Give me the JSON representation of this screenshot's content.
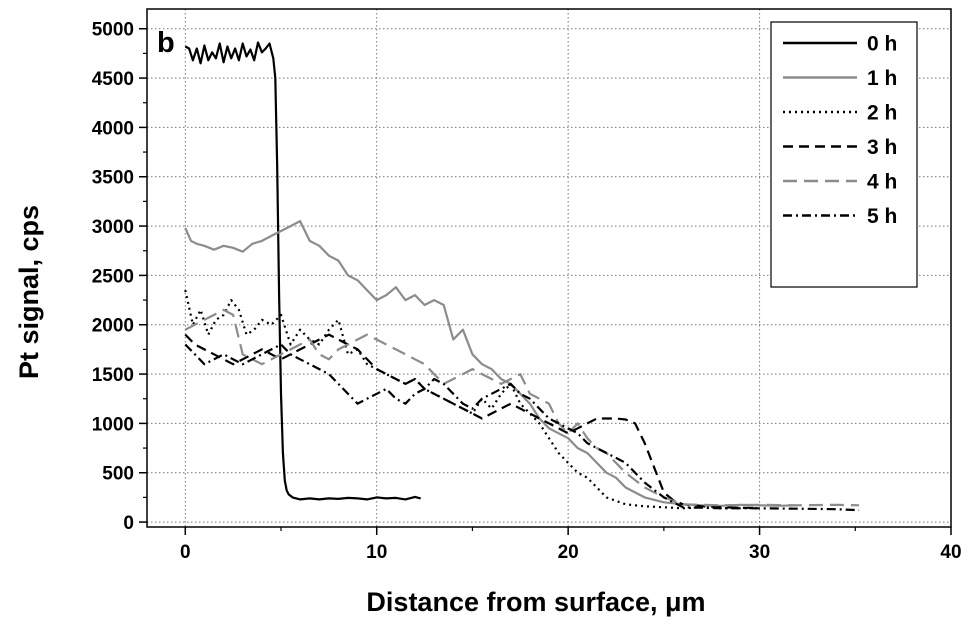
{
  "chart_data": {
    "type": "line",
    "panel_label": "b",
    "xlabel": "Distance from surface, μm",
    "ylabel": "Pt signal, cps",
    "xlim": [
      -2,
      40
    ],
    "ylim": [
      -50,
      5200
    ],
    "xticks": [
      0,
      10,
      20,
      30,
      40
    ],
    "yticks": [
      0,
      500,
      1000,
      1500,
      2000,
      2500,
      3000,
      3500,
      4000,
      4500,
      5000
    ],
    "grid": true,
    "legend_position": "top-right",
    "series": [
      {
        "name": "0 h",
        "color": "#000000",
        "dash": "solid",
        "x": [
          0,
          0.2,
          0.4,
          0.6,
          0.8,
          1.0,
          1.2,
          1.4,
          1.6,
          1.8,
          2.0,
          2.2,
          2.4,
          2.6,
          2.8,
          3.0,
          3.2,
          3.4,
          3.6,
          3.8,
          4.0,
          4.2,
          4.4,
          4.6,
          4.7,
          4.8,
          4.9,
          5.0,
          5.1,
          5.2,
          5.3,
          5.4,
          5.6,
          5.8,
          6.0,
          6.5,
          7.0,
          7.5,
          8.0,
          8.5,
          9.0,
          9.5,
          10.0,
          10.5,
          11.0,
          11.5,
          12.0,
          12.3
        ],
        "y": [
          4820,
          4800,
          4680,
          4800,
          4650,
          4830,
          4680,
          4760,
          4700,
          4850,
          4660,
          4820,
          4700,
          4800,
          4680,
          4850,
          4720,
          4790,
          4680,
          4860,
          4760,
          4800,
          4850,
          4700,
          4500,
          3600,
          2300,
          1300,
          700,
          420,
          320,
          280,
          250,
          240,
          230,
          240,
          230,
          240,
          235,
          245,
          240,
          230,
          250,
          240,
          245,
          230,
          255,
          240
        ]
      },
      {
        "name": "1 h",
        "color": "#8c8c8c",
        "dash": "solid",
        "x": [
          0,
          0.3,
          0.6,
          1.0,
          1.5,
          2.0,
          2.5,
          3.0,
          3.5,
          4.0,
          4.5,
          5.0,
          5.5,
          6.0,
          6.5,
          7.0,
          7.5,
          8.0,
          8.5,
          9.0,
          9.5,
          10.0,
          10.5,
          11.0,
          11.5,
          12.0,
          12.5,
          13.0,
          13.5,
          14.0,
          14.5,
          15.0,
          15.5,
          16.0,
          16.5,
          17.0,
          17.5,
          18.0,
          18.5,
          19.0,
          19.5,
          20.0,
          20.5,
          21.0,
          21.5,
          22.0,
          22.5,
          23.0,
          24.0,
          25.0,
          26.0,
          27.0,
          28.0,
          29.0,
          30.0,
          31.0,
          32.0
        ],
        "y": [
          2980,
          2850,
          2820,
          2800,
          2760,
          2800,
          2780,
          2740,
          2820,
          2850,
          2900,
          2950,
          3000,
          3050,
          2850,
          2800,
          2700,
          2650,
          2500,
          2450,
          2350,
          2250,
          2300,
          2380,
          2250,
          2300,
          2200,
          2250,
          2200,
          1850,
          1950,
          1700,
          1600,
          1550,
          1450,
          1400,
          1300,
          1200,
          1050,
          950,
          900,
          850,
          750,
          700,
          600,
          500,
          450,
          350,
          250,
          200,
          180,
          170,
          165,
          175,
          170,
          165,
          170
        ]
      },
      {
        "name": "2 h",
        "color": "#000000",
        "dash": "dot",
        "x": [
          0,
          0.4,
          0.8,
          1.2,
          1.6,
          2.0,
          2.4,
          2.8,
          3.2,
          3.6,
          4.0,
          4.5,
          5.0,
          5.5,
          6.0,
          6.5,
          7.0,
          7.5,
          8.0,
          8.5,
          9.0,
          9.5,
          10.0,
          10.5,
          11.0,
          11.5,
          12.0,
          12.5,
          13.0,
          13.5,
          14.0,
          14.5,
          15.0,
          15.5,
          16.0,
          16.5,
          17.0,
          17.5,
          18.0,
          18.5,
          19.0,
          19.5,
          20.0,
          20.5,
          21.0,
          21.5,
          22.0,
          23.0,
          24.0,
          25.0,
          26.0,
          27.0,
          28.0,
          29.0,
          30.0
        ],
        "y": [
          2350,
          2000,
          2150,
          1900,
          2050,
          2100,
          2250,
          2150,
          1900,
          1950,
          2050,
          2000,
          2100,
          1800,
          1950,
          1850,
          1800,
          1950,
          2050,
          1700,
          1750,
          1600,
          1550,
          1500,
          1450,
          1400,
          1450,
          1350,
          1300,
          1250,
          1200,
          1150,
          1100,
          1250,
          1150,
          1300,
          1400,
          1200,
          1100,
          1000,
          850,
          700,
          600,
          500,
          450,
          350,
          250,
          180,
          160,
          150,
          140,
          150,
          140,
          145,
          140
        ]
      },
      {
        "name": "3 h",
        "color": "#000000",
        "dash": "dash",
        "x": [
          0,
          0.5,
          1.0,
          1.5,
          2.0,
          2.5,
          3.0,
          3.5,
          4.0,
          4.5,
          5.0,
          5.5,
          6.0,
          6.5,
          7.0,
          7.5,
          8.0,
          8.5,
          9.0,
          9.5,
          10.0,
          10.5,
          11.0,
          11.5,
          12.0,
          12.5,
          13.0,
          13.5,
          14.0,
          14.5,
          15.0,
          15.5,
          16.0,
          16.5,
          17.0,
          17.5,
          18.0,
          18.5,
          19.0,
          19.5,
          20.0,
          20.5,
          21.0,
          21.5,
          22.0,
          22.5,
          23.0,
          23.5,
          24.0,
          24.5,
          25.0,
          25.5,
          26.0,
          27.0,
          28.0,
          29.0,
          30.0
        ],
        "y": [
          1900,
          1800,
          1750,
          1700,
          1650,
          1600,
          1650,
          1700,
          1750,
          1700,
          1650,
          1700,
          1750,
          1800,
          1850,
          1900,
          1850,
          1800,
          1750,
          1650,
          1550,
          1500,
          1450,
          1400,
          1450,
          1350,
          1300,
          1250,
          1200,
          1150,
          1100,
          1050,
          1100,
          1150,
          1200,
          1150,
          1100,
          1050,
          1000,
          950,
          900,
          950,
          1000,
          1050,
          1050,
          1050,
          1040,
          1000,
          800,
          550,
          300,
          220,
          180,
          160,
          150,
          145,
          145
        ]
      },
      {
        "name": "4 h",
        "color": "#8c8c8c",
        "dash": "longdash",
        "x": [
          0,
          0.5,
          1.0,
          1.5,
          2.0,
          2.5,
          3.0,
          3.5,
          4.0,
          4.5,
          5.0,
          5.5,
          6.0,
          6.5,
          7.0,
          7.5,
          8.0,
          8.5,
          9.0,
          9.5,
          10.0,
          10.5,
          11.0,
          11.5,
          12.0,
          12.5,
          13.0,
          13.5,
          14.0,
          14.5,
          15.0,
          15.5,
          16.0,
          16.5,
          17.0,
          17.5,
          18.0,
          18.5,
          19.0,
          19.5,
          20.0,
          20.5,
          21.0,
          21.5,
          22.0,
          22.5,
          23.0,
          24.0,
          25.0,
          26.0,
          28.0,
          30.0,
          32.0,
          34.0,
          35.2
        ],
        "y": [
          1950,
          2000,
          2050,
          2100,
          2150,
          2100,
          1700,
          1650,
          1600,
          1650,
          1700,
          1750,
          1800,
          1850,
          1700,
          1650,
          1750,
          1800,
          1850,
          1900,
          1850,
          1800,
          1750,
          1700,
          1650,
          1600,
          1500,
          1400,
          1450,
          1500,
          1550,
          1500,
          1450,
          1400,
          1450,
          1500,
          1300,
          1250,
          1200,
          1000,
          900,
          1000,
          850,
          750,
          700,
          600,
          500,
          350,
          250,
          180,
          170,
          175,
          170,
          175,
          170
        ]
      },
      {
        "name": "5 h",
        "color": "#000000",
        "dash": "dashdot",
        "x": [
          0,
          0.5,
          1.0,
          1.5,
          2.0,
          2.5,
          3.0,
          3.5,
          4.0,
          4.5,
          5.0,
          5.5,
          6.0,
          6.5,
          7.0,
          7.5,
          8.0,
          8.5,
          9.0,
          9.5,
          10.0,
          10.5,
          11.0,
          11.5,
          12.0,
          12.5,
          13.0,
          13.5,
          14.0,
          14.5,
          15.0,
          15.5,
          16.0,
          16.5,
          17.0,
          17.5,
          18.0,
          18.5,
          19.0,
          19.5,
          20.0,
          20.5,
          21.0,
          21.5,
          22.0,
          22.5,
          23.0,
          23.5,
          24.0,
          25.0,
          26.0,
          28.0,
          30.0,
          32.0,
          34.0,
          35.2
        ],
        "y": [
          1800,
          1700,
          1600,
          1650,
          1700,
          1650,
          1600,
          1650,
          1700,
          1750,
          1800,
          1700,
          1650,
          1600,
          1550,
          1500,
          1400,
          1300,
          1200,
          1250,
          1300,
          1350,
          1250,
          1200,
          1300,
          1350,
          1450,
          1400,
          1300,
          1200,
          1150,
          1250,
          1300,
          1350,
          1400,
          1300,
          1250,
          1150,
          1050,
          1000,
          950,
          900,
          800,
          750,
          700,
          650,
          600,
          500,
          400,
          250,
          150,
          140,
          140,
          135,
          130,
          120
        ]
      }
    ]
  }
}
